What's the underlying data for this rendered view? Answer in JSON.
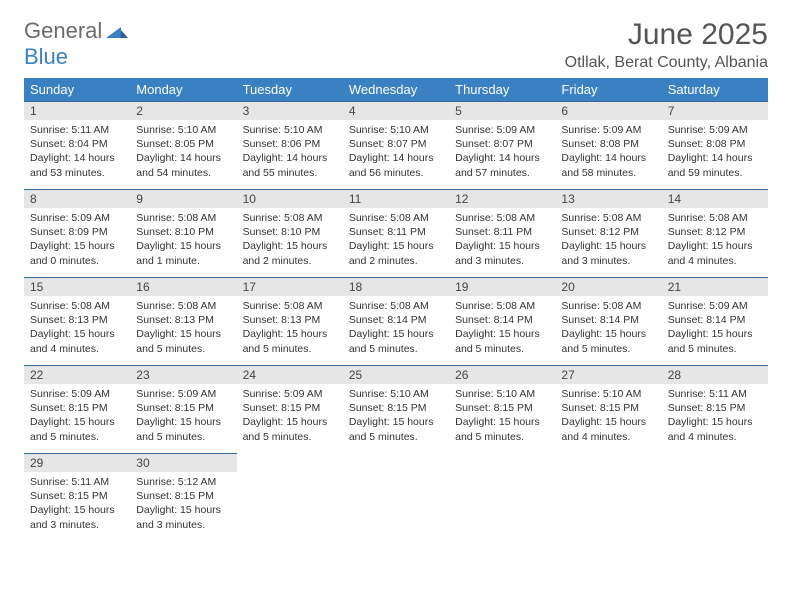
{
  "logo": {
    "word1": "General",
    "word2": "Blue"
  },
  "title": "June 2025",
  "location": "Otllak, Berat County, Albania",
  "weekdays": [
    "Sunday",
    "Monday",
    "Tuesday",
    "Wednesday",
    "Thursday",
    "Friday",
    "Saturday"
  ],
  "colors": {
    "header_bg": "#3a81c3",
    "daynum_bg": "#e6e6e6",
    "row_border": "#3a6a9c",
    "text": "#333333",
    "title_text": "#555555",
    "logo_gray": "#6b6b6b"
  },
  "weeks": [
    [
      {
        "n": "1",
        "sunrise": "5:11 AM",
        "sunset": "8:04 PM",
        "daylight": "14 hours and 53 minutes."
      },
      {
        "n": "2",
        "sunrise": "5:10 AM",
        "sunset": "8:05 PM",
        "daylight": "14 hours and 54 minutes."
      },
      {
        "n": "3",
        "sunrise": "5:10 AM",
        "sunset": "8:06 PM",
        "daylight": "14 hours and 55 minutes."
      },
      {
        "n": "4",
        "sunrise": "5:10 AM",
        "sunset": "8:07 PM",
        "daylight": "14 hours and 56 minutes."
      },
      {
        "n": "5",
        "sunrise": "5:09 AM",
        "sunset": "8:07 PM",
        "daylight": "14 hours and 57 minutes."
      },
      {
        "n": "6",
        "sunrise": "5:09 AM",
        "sunset": "8:08 PM",
        "daylight": "14 hours and 58 minutes."
      },
      {
        "n": "7",
        "sunrise": "5:09 AM",
        "sunset": "8:08 PM",
        "daylight": "14 hours and 59 minutes."
      }
    ],
    [
      {
        "n": "8",
        "sunrise": "5:09 AM",
        "sunset": "8:09 PM",
        "daylight": "15 hours and 0 minutes."
      },
      {
        "n": "9",
        "sunrise": "5:08 AM",
        "sunset": "8:10 PM",
        "daylight": "15 hours and 1 minute."
      },
      {
        "n": "10",
        "sunrise": "5:08 AM",
        "sunset": "8:10 PM",
        "daylight": "15 hours and 2 minutes."
      },
      {
        "n": "11",
        "sunrise": "5:08 AM",
        "sunset": "8:11 PM",
        "daylight": "15 hours and 2 minutes."
      },
      {
        "n": "12",
        "sunrise": "5:08 AM",
        "sunset": "8:11 PM",
        "daylight": "15 hours and 3 minutes."
      },
      {
        "n": "13",
        "sunrise": "5:08 AM",
        "sunset": "8:12 PM",
        "daylight": "15 hours and 3 minutes."
      },
      {
        "n": "14",
        "sunrise": "5:08 AM",
        "sunset": "8:12 PM",
        "daylight": "15 hours and 4 minutes."
      }
    ],
    [
      {
        "n": "15",
        "sunrise": "5:08 AM",
        "sunset": "8:13 PM",
        "daylight": "15 hours and 4 minutes."
      },
      {
        "n": "16",
        "sunrise": "5:08 AM",
        "sunset": "8:13 PM",
        "daylight": "15 hours and 5 minutes."
      },
      {
        "n": "17",
        "sunrise": "5:08 AM",
        "sunset": "8:13 PM",
        "daylight": "15 hours and 5 minutes."
      },
      {
        "n": "18",
        "sunrise": "5:08 AM",
        "sunset": "8:14 PM",
        "daylight": "15 hours and 5 minutes."
      },
      {
        "n": "19",
        "sunrise": "5:08 AM",
        "sunset": "8:14 PM",
        "daylight": "15 hours and 5 minutes."
      },
      {
        "n": "20",
        "sunrise": "5:08 AM",
        "sunset": "8:14 PM",
        "daylight": "15 hours and 5 minutes."
      },
      {
        "n": "21",
        "sunrise": "5:09 AM",
        "sunset": "8:14 PM",
        "daylight": "15 hours and 5 minutes."
      }
    ],
    [
      {
        "n": "22",
        "sunrise": "5:09 AM",
        "sunset": "8:15 PM",
        "daylight": "15 hours and 5 minutes."
      },
      {
        "n": "23",
        "sunrise": "5:09 AM",
        "sunset": "8:15 PM",
        "daylight": "15 hours and 5 minutes."
      },
      {
        "n": "24",
        "sunrise": "5:09 AM",
        "sunset": "8:15 PM",
        "daylight": "15 hours and 5 minutes."
      },
      {
        "n": "25",
        "sunrise": "5:10 AM",
        "sunset": "8:15 PM",
        "daylight": "15 hours and 5 minutes."
      },
      {
        "n": "26",
        "sunrise": "5:10 AM",
        "sunset": "8:15 PM",
        "daylight": "15 hours and 5 minutes."
      },
      {
        "n": "27",
        "sunrise": "5:10 AM",
        "sunset": "8:15 PM",
        "daylight": "15 hours and 4 minutes."
      },
      {
        "n": "28",
        "sunrise": "5:11 AM",
        "sunset": "8:15 PM",
        "daylight": "15 hours and 4 minutes."
      }
    ],
    [
      {
        "n": "29",
        "sunrise": "5:11 AM",
        "sunset": "8:15 PM",
        "daylight": "15 hours and 3 minutes."
      },
      {
        "n": "30",
        "sunrise": "5:12 AM",
        "sunset": "8:15 PM",
        "daylight": "15 hours and 3 minutes."
      },
      null,
      null,
      null,
      null,
      null
    ]
  ],
  "labels": {
    "sunrise": "Sunrise: ",
    "sunset": "Sunset: ",
    "daylight": "Daylight: "
  }
}
